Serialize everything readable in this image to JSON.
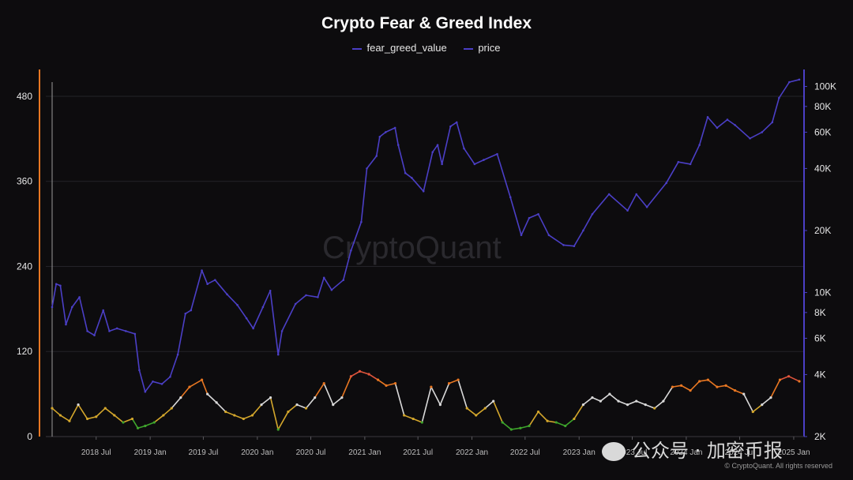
{
  "chart_data": {
    "type": "line",
    "title": "Crypto Fear & Greed Index",
    "legend": {
      "position": "top-center",
      "items": [
        "fear_greed_value",
        "price"
      ]
    },
    "grid": true,
    "watermark": "CryptoQuant",
    "footer": "公众号 · 加密币报",
    "copyright": "© CryptoQuant. All rights reserved",
    "colors": {
      "background": "#0d0c0e",
      "price": "#4b3fc6",
      "left_axis": "#e87722",
      "right_axis": "#4b3fc6",
      "fear": "#3ea52c",
      "neutral_low": "#d4a72c",
      "neutral": "#d9d9d9",
      "greed": "#e87722",
      "extreme_greed": "#e0553c"
    },
    "x_ticks": [
      "2018 Jul",
      "2019 Jan",
      "2019 Jul",
      "2020 Jan",
      "2020 Jul",
      "2021 Jan",
      "2021 Jul",
      "2022 Jan",
      "2022 Jul",
      "2023 Jan",
      "2023 Jul",
      "2024 Jan",
      "2024 Jul",
      "2025 Jan"
    ],
    "y_left": {
      "ticks": [
        0,
        120,
        240,
        360,
        480
      ],
      "range": [
        0,
        500
      ]
    },
    "y_right": {
      "ticks": [
        "2K",
        "4K",
        "6K",
        "8K",
        "10K",
        "20K",
        "40K",
        "60K",
        "80K",
        "100K"
      ],
      "scale": "log",
      "range": [
        2000,
        105000
      ]
    },
    "series": [
      {
        "name": "price",
        "x": [
          "2018-02-01",
          "2018-02-15",
          "2018-03-01",
          "2018-03-20",
          "2018-04-10",
          "2018-05-05",
          "2018-06-01",
          "2018-06-25",
          "2018-07-25",
          "2018-08-15",
          "2018-09-10",
          "2018-10-10",
          "2018-11-10",
          "2018-11-25",
          "2018-12-15",
          "2019-01-10",
          "2019-02-10",
          "2019-03-10",
          "2019-04-05",
          "2019-05-01",
          "2019-05-20",
          "2019-06-26",
          "2019-07-15",
          "2019-08-10",
          "2019-09-20",
          "2019-10-25",
          "2019-11-25",
          "2019-12-18",
          "2020-01-20",
          "2020-02-14",
          "2020-03-12",
          "2020-03-25",
          "2020-05-10",
          "2020-06-15",
          "2020-07-25",
          "2020-08-15",
          "2020-09-10",
          "2020-10-20",
          "2020-11-15",
          "2020-12-20",
          "2021-01-08",
          "2021-02-10",
          "2021-02-21",
          "2021-03-13",
          "2021-04-14",
          "2021-04-25",
          "2021-05-19",
          "2021-06-10",
          "2021-07-20",
          "2021-08-20",
          "2021-09-06",
          "2021-09-21",
          "2021-10-20",
          "2021-11-10",
          "2021-12-05",
          "2022-01-10",
          "2022-02-10",
          "2022-03-28",
          "2022-05-12",
          "2022-06-18",
          "2022-07-15",
          "2022-08-15",
          "2022-09-20",
          "2022-11-09",
          "2022-12-15",
          "2023-01-15",
          "2023-02-15",
          "2023-04-13",
          "2023-06-15",
          "2023-07-15",
          "2023-08-20",
          "2023-10-25",
          "2023-12-05",
          "2024-01-15",
          "2024-02-15",
          "2024-03-14",
          "2024-04-15",
          "2024-05-20",
          "2024-06-15",
          "2024-08-05",
          "2024-09-15",
          "2024-10-20",
          "2024-11-12",
          "2024-12-17",
          "2025-01-20"
        ],
        "values": [
          8500,
          11000,
          10800,
          7000,
          8500,
          9500,
          6500,
          6200,
          8200,
          6500,
          6700,
          6500,
          6300,
          4200,
          3300,
          3700,
          3600,
          3900,
          5000,
          7900,
          8200,
          12800,
          11000,
          11500,
          9800,
          8700,
          7500,
          6700,
          8500,
          10200,
          5000,
          6500,
          8800,
          9700,
          9500,
          11800,
          10300,
          11500,
          16000,
          22000,
          40000,
          46000,
          57000,
          60000,
          63000,
          52000,
          38000,
          36000,
          31000,
          48000,
          52000,
          42000,
          64000,
          67000,
          50000,
          42000,
          44000,
          47000,
          29000,
          19000,
          23000,
          24000,
          19000,
          17000,
          16800,
          20000,
          24000,
          30000,
          25000,
          30000,
          26000,
          34000,
          43000,
          42000,
          52000,
          71000,
          63000,
          69000,
          65000,
          56000,
          60000,
          67000,
          88000,
          105000,
          108000
        ]
      },
      {
        "name": "fear_greed_value",
        "x": [
          "2018-02-01",
          "2018-03-01",
          "2018-04-01",
          "2018-05-01",
          "2018-06-01",
          "2018-07-01",
          "2018-08-01",
          "2018-09-01",
          "2018-10-01",
          "2018-11-01",
          "2018-11-20",
          "2018-12-15",
          "2019-01-15",
          "2019-02-15",
          "2019-03-15",
          "2019-04-15",
          "2019-05-15",
          "2019-06-26",
          "2019-07-15",
          "2019-08-15",
          "2019-09-15",
          "2019-10-15",
          "2019-11-15",
          "2019-12-15",
          "2020-01-15",
          "2020-02-15",
          "2020-03-12",
          "2020-04-15",
          "2020-05-15",
          "2020-06-15",
          "2020-07-15",
          "2020-08-15",
          "2020-09-15",
          "2020-10-15",
          "2020-11-15",
          "2020-12-15",
          "2021-01-15",
          "2021-02-15",
          "2021-03-15",
          "2021-04-15",
          "2021-05-15",
          "2021-06-15",
          "2021-07-15",
          "2021-08-15",
          "2021-09-15",
          "2021-10-15",
          "2021-11-15",
          "2021-12-15",
          "2022-01-15",
          "2022-02-15",
          "2022-03-15",
          "2022-04-15",
          "2022-05-15",
          "2022-06-15",
          "2022-07-15",
          "2022-08-15",
          "2022-09-15",
          "2022-10-15",
          "2022-11-15",
          "2022-12-15",
          "2023-01-15",
          "2023-02-15",
          "2023-03-15",
          "2023-04-15",
          "2023-05-15",
          "2023-06-15",
          "2023-07-15",
          "2023-08-15",
          "2023-09-15",
          "2023-10-15",
          "2023-11-15",
          "2023-12-15",
          "2024-01-15",
          "2024-02-15",
          "2024-03-15",
          "2024-04-15",
          "2024-05-15",
          "2024-06-15",
          "2024-07-15",
          "2024-08-15",
          "2024-09-15",
          "2024-10-15",
          "2024-11-15",
          "2024-12-15",
          "2025-01-20"
        ],
        "values": [
          40,
          30,
          22,
          45,
          25,
          28,
          40,
          30,
          20,
          25,
          12,
          15,
          20,
          30,
          40,
          55,
          70,
          80,
          60,
          48,
          35,
          30,
          25,
          30,
          45,
          55,
          10,
          35,
          45,
          40,
          55,
          75,
          45,
          55,
          85,
          92,
          88,
          80,
          72,
          75,
          30,
          25,
          20,
          70,
          45,
          75,
          80,
          40,
          30,
          40,
          50,
          20,
          10,
          12,
          15,
          35,
          22,
          20,
          15,
          25,
          45,
          55,
          50,
          60,
          50,
          45,
          50,
          45,
          40,
          50,
          70,
          72,
          65,
          78,
          80,
          70,
          72,
          65,
          60,
          35,
          45,
          55,
          80,
          85,
          78
        ]
      }
    ]
  }
}
